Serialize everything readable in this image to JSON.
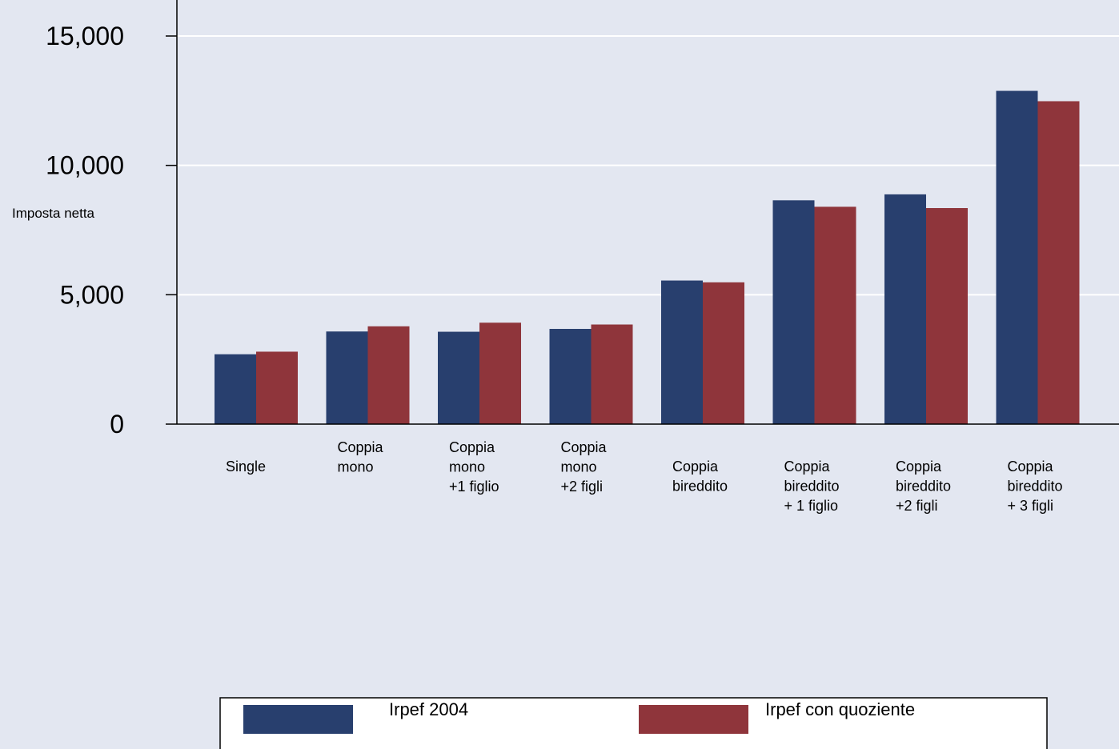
{
  "chart_data": {
    "type": "bar",
    "title": "",
    "xlabel": "",
    "ylabel": "Imposta netta",
    "ylim": [
      0,
      15000
    ],
    "yticks": [
      {
        "value": 0,
        "label": "0"
      },
      {
        "value": 5000,
        "label": "5,000"
      },
      {
        "value": 10000,
        "label": "10,000"
      },
      {
        "value": 15000,
        "label": "15,000"
      }
    ],
    "grid": true,
    "legend_position": "bottom",
    "categories": [
      [
        "Single"
      ],
      [
        "Coppia",
        "mono"
      ],
      [
        "Coppia",
        "mono",
        "+1 figlio"
      ],
      [
        "Coppia",
        "mono",
        "+2 figli"
      ],
      [
        "Coppia",
        "bireddito"
      ],
      [
        "Coppia",
        "bireddito",
        "+ 1 figlio"
      ],
      [
        "Coppia",
        "bireddito",
        "+2 figli"
      ],
      [
        "Coppia",
        "bireddito",
        "+ 3 figli"
      ]
    ],
    "series": [
      {
        "name": "Irpef 2004",
        "color": "#283f6e",
        "values": [
          2700,
          3580,
          3570,
          3680,
          5550,
          8650,
          8880,
          12880
        ]
      },
      {
        "name": "Irpef con quoziente",
        "color": "#8f353b",
        "values": [
          2800,
          3780,
          3920,
          3850,
          5480,
          8400,
          8350,
          12480
        ]
      }
    ],
    "colors": {
      "background": "#e3e7f1",
      "gridline": "#ffffff",
      "axis": "#000000"
    }
  }
}
